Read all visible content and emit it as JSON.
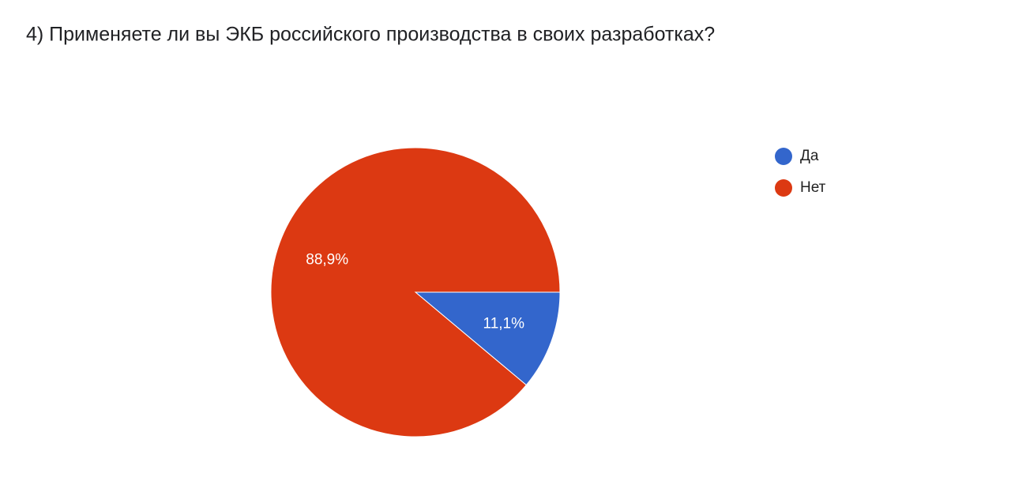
{
  "chart_data": {
    "type": "pie",
    "title": "4) Применяете ли вы ЭКБ российского производства в своих разработках?",
    "categories": [
      "Да",
      "Нет"
    ],
    "values": [
      11.1,
      88.9
    ],
    "value_labels": [
      "11,1%",
      "88,9%"
    ],
    "colors": [
      "#3366cc",
      "#dc3912"
    ],
    "legend": "right"
  }
}
